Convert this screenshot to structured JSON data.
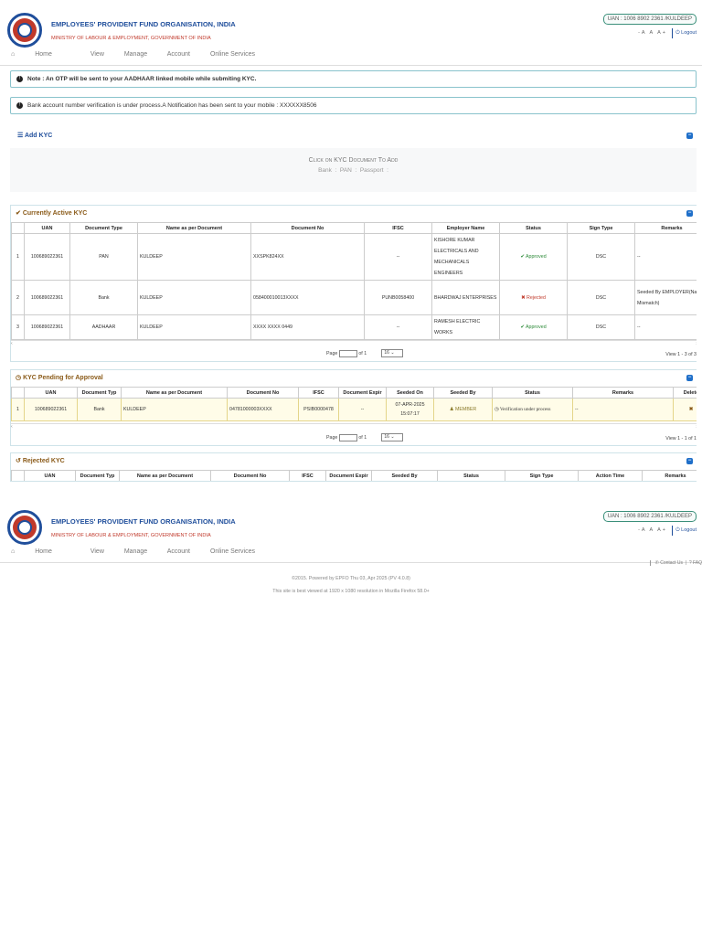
{
  "header": {
    "org_name": "EMPLOYEES' PROVIDENT FUND ORGANISATION, INDIA",
    "ministry": "MINISTRY OF LABOUR & EMPLOYMENT, GOVERNMENT OF INDIA",
    "uan_label": "UAN : 1006 8902 2361 /KULDEEP",
    "accessibility": "-A A A+",
    "logout": "Logout"
  },
  "nav": {
    "home": "Home",
    "view": "View",
    "manage": "Manage",
    "account": "Account",
    "online_services": "Online Services"
  },
  "notes": {
    "otp": "Note : An OTP will be sent to your AADHAAR linked mobile while submiting KYC.",
    "bank": "Bank account number verification is under process.A Notification has been sent to your mobile : XXXXXX8506"
  },
  "add_kyc": {
    "title": "Add KYC",
    "click_text": "Click on KYC Document To Add",
    "options": [
      "Bank",
      "PAN",
      "Passport"
    ]
  },
  "active_kyc": {
    "title": "Currently Active KYC",
    "headers": [
      "",
      "UAN",
      "Document Type",
      "Name as per Document",
      "Document No",
      "IFSC",
      "Employer Name",
      "Status",
      "Sign Type",
      "Remarks"
    ],
    "rows": [
      {
        "no": "1",
        "uan": "100689022361",
        "type": "PAN",
        "name": "KULDEEP",
        "doc": "XXSPK824XX",
        "ifsc": "--",
        "employer": "KISHORE KUMAR ELECTRICALS AND MECHANICALS ENGINEERS",
        "status": "Approved",
        "sign": "DSC",
        "remarks": "--"
      },
      {
        "no": "2",
        "uan": "100689022361",
        "type": "Bank",
        "name": "KULDEEP",
        "doc": "058400010013XXXX",
        "ifsc": "PUNB0058400",
        "employer": "BHARDWAJ ENTERPRISES",
        "status": "Rejected",
        "sign": "DSC",
        "remarks": "Seeded By EMPLOYER(Name Mismatch)"
      },
      {
        "no": "3",
        "uan": "100689022361",
        "type": "AADHAAR",
        "name": "KULDEEP",
        "doc": "XXXX XXXX 0449",
        "ifsc": "--",
        "employer": "RAMESH ELECTRIC WORKS",
        "status": "Approved",
        "sign": "DSC",
        "remarks": "--"
      }
    ],
    "page_label": "Page",
    "of_label": "of 1",
    "per_page": "16",
    "view_info": "View 1 - 3 of 3"
  },
  "pending_kyc": {
    "title": "KYC Pending for Approval",
    "headers": [
      "",
      "UAN",
      "Document Typ",
      "Name as per Document",
      "Document No",
      "IFSC",
      "Document Expir",
      "Seeded On",
      "Seeded By",
      "Status",
      "Remarks",
      "Delete"
    ],
    "row": {
      "no": "1",
      "uan": "100689022361",
      "type": "Bank",
      "name": "KULDEEP",
      "doc": "04781000003XXXX",
      "ifsc": "PSIB0000478",
      "expiry": "--",
      "seeded_on": "07-APR-2025 15:07:17",
      "seeded_by": "MEMBER",
      "status": "Verification under process",
      "remarks": "--"
    },
    "page_label": "Page",
    "of_label": "of 1",
    "per_page": "16",
    "view_info": "View 1 - 1 of 1"
  },
  "rejected_kyc": {
    "title": "Rejected KYC",
    "headers": [
      "",
      "UAN",
      "Document Typ",
      "Name as per Document",
      "Document No",
      "IFSC",
      "Document Expir",
      "Seeded By",
      "Status",
      "Sign Type",
      "Action Time",
      "Remarks"
    ]
  },
  "footer": {
    "contact": "Contact Us",
    "faq": "FAQ",
    "powered": "©2015. Powered by EPFO Thu 03, Apr 2025 (PV 4.0.8)",
    "best_viewed": "This site is best viewed at 1920 x 1080 resolution in Mozilla Firefox 58.0+"
  },
  "colors": {
    "brand_blue": "#1f4e9b",
    "brand_red": "#c0392b",
    "approved": "#2e8b3a",
    "rejected": "#c0392b",
    "section_title": "#8a5a18"
  }
}
